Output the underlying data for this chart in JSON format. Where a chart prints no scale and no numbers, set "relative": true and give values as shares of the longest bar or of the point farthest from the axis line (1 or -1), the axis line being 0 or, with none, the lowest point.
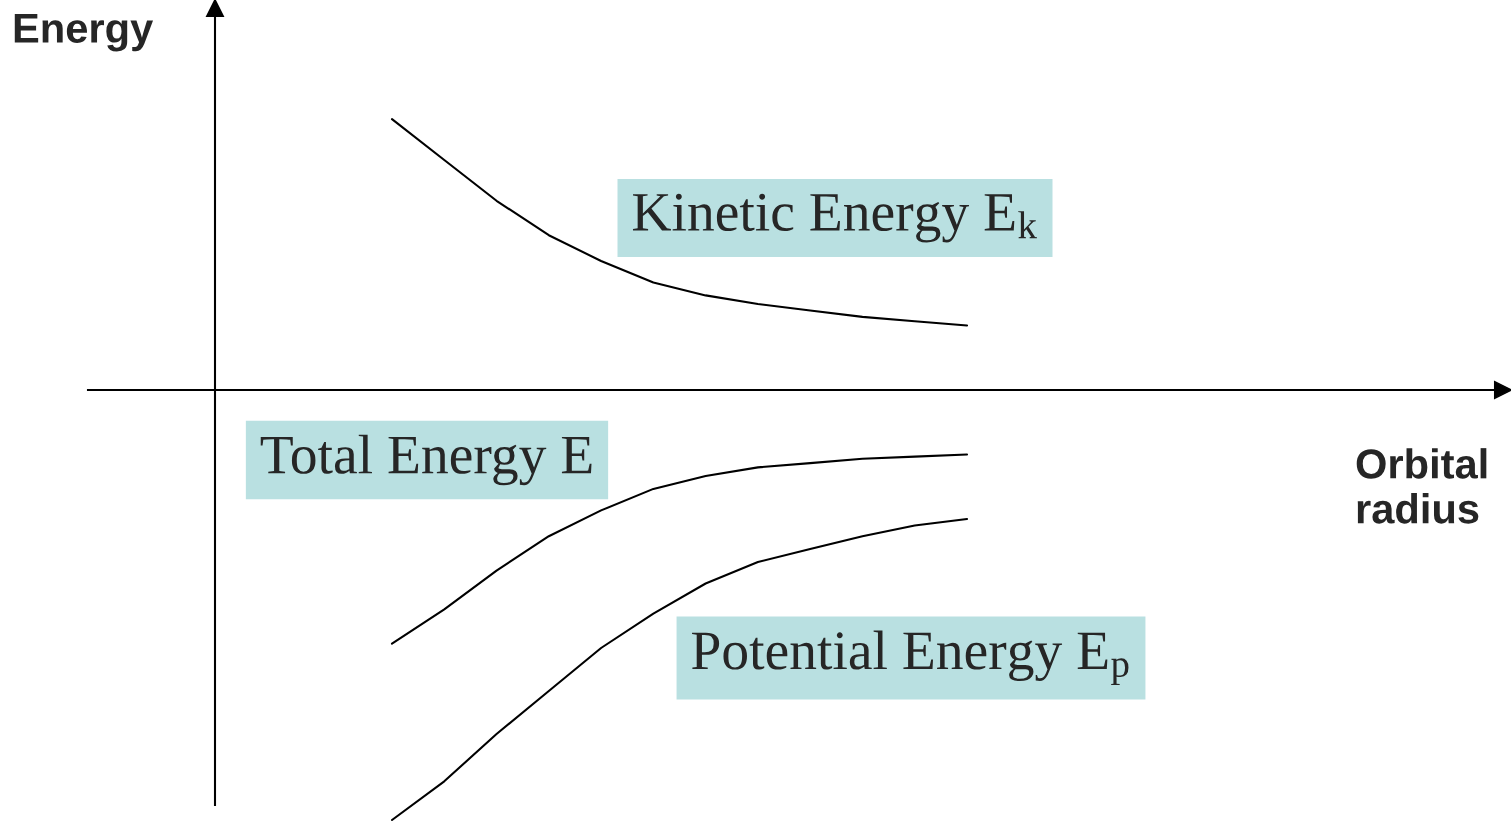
{
  "chart_data": {
    "type": "line",
    "relative": true,
    "annotations": [
      "Orbital\nradius",
      "Energy"
    ],
    "legend": false,
    "marker": "none",
    "line_style": "solid",
    "categories": [
      null,
      null,
      null,
      null,
      null,
      null,
      null,
      null,
      null,
      null,
      null,
      null
    ],
    "series": [
      {
        "name": "Kinetic Energy E$_{k}$",
        "color": "#000000",
        "values": [
          0.63,
          0.535,
          0.44,
          0.36,
          0.3,
          0.25,
          0.22,
          0.2,
          0.185,
          0.17,
          0.16,
          0.15
        ]
      },
      {
        "name": "Total Energy E",
        "color": "#000000",
        "values": [
          -0.59,
          -0.51,
          -0.42,
          -0.34,
          -0.28,
          -0.23,
          -0.2,
          -0.18,
          -0.17,
          -0.16,
          -0.155,
          -0.15
        ]
      },
      {
        "name": "Potential Energy E$_{p}$",
        "color": "#000000",
        "values": [
          -1.0,
          -0.91,
          -0.8,
          -0.7,
          -0.6,
          -0.52,
          -0.45,
          -0.4,
          -0.37,
          -0.34,
          -0.315,
          -0.3
        ]
      }
    ]
  }
}
